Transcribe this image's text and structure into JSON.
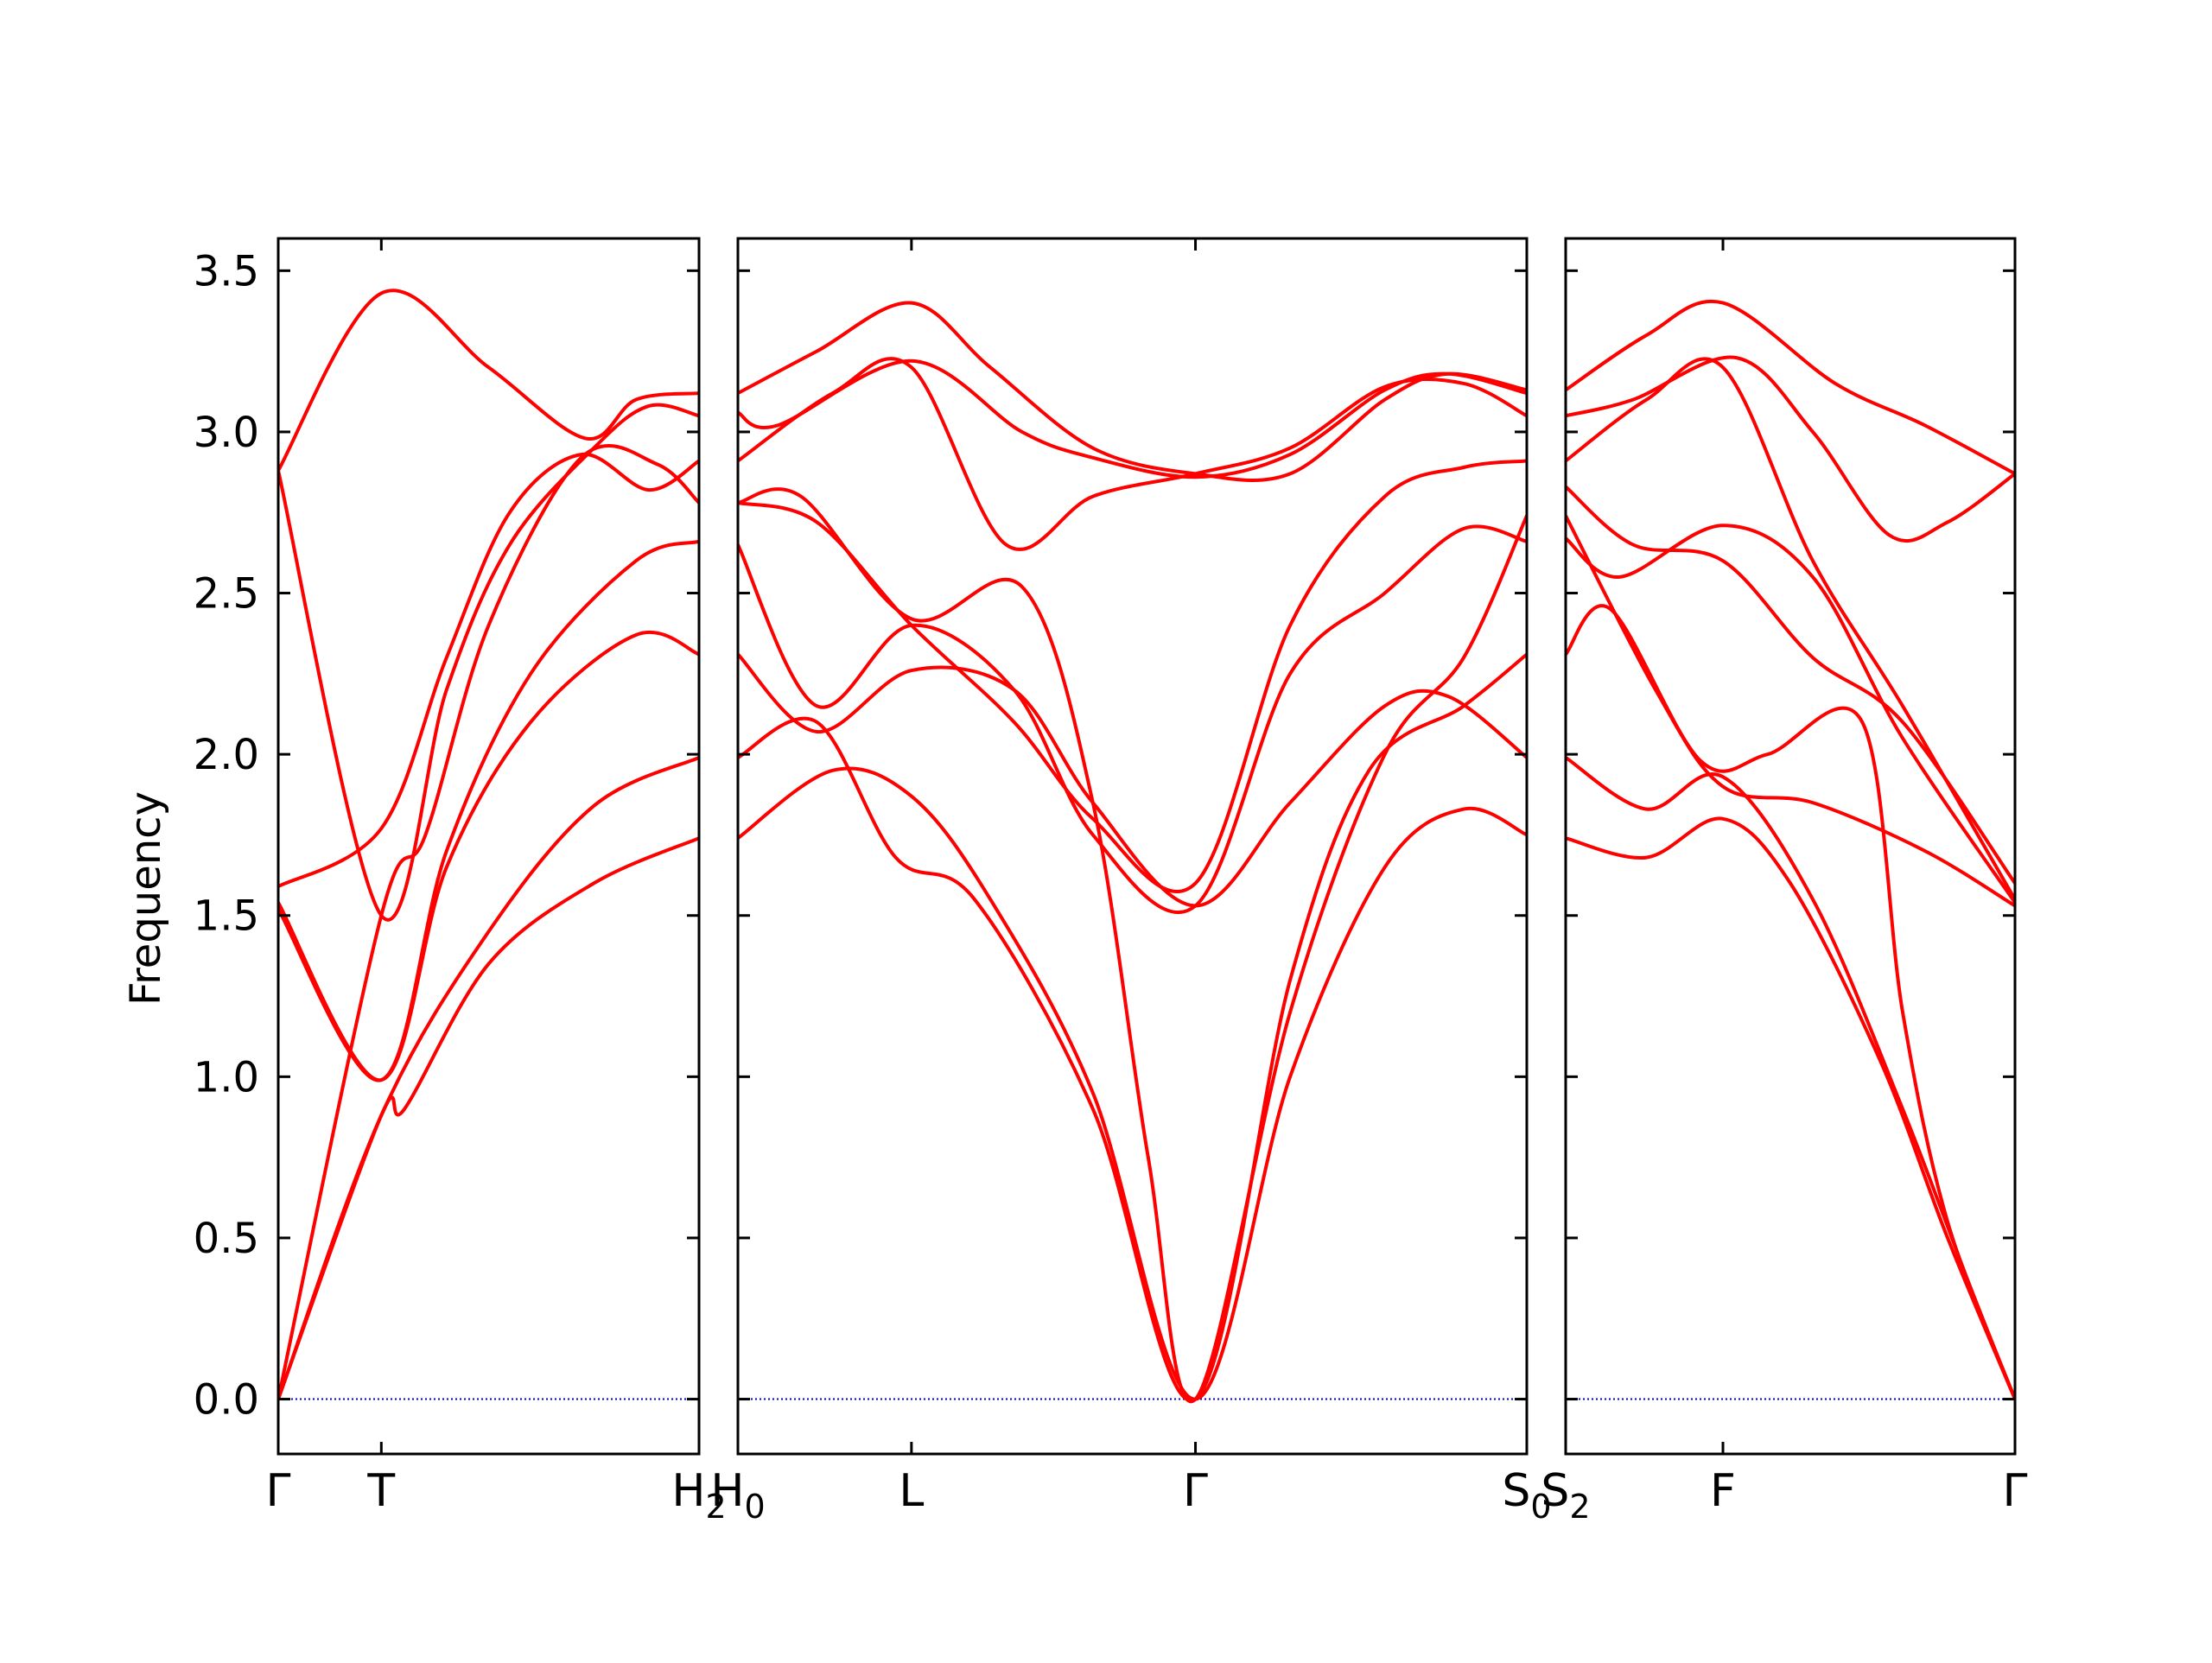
{
  "chart_data": {
    "type": "line",
    "ylabel": "Frequency",
    "ylim": [
      -0.17,
      3.6
    ],
    "yticks": [
      0.0,
      0.5,
      1.0,
      1.5,
      2.0,
      2.5,
      3.0,
      3.5
    ],
    "ytick_labels": [
      "0.0",
      "0.5",
      "1.0",
      "1.5",
      "2.0",
      "2.5",
      "3.0",
      "3.5"
    ],
    "line_color": "#ff0000",
    "zero_line_color": "#0000cc",
    "panels": [
      {
        "ticks": [
          {
            "x": 0.0,
            "label": "Γ",
            "sub": ""
          },
          {
            "x": 0.245,
            "label": "T",
            "sub": ""
          },
          {
            "x": 1.0,
            "label": "H",
            "sub": "2"
          }
        ],
        "bands": [
          [
            [
              0.0,
              0.0
            ],
            [
              0.245,
              0.88
            ],
            [
              0.5,
              1.45
            ],
            [
              0.75,
              1.84
            ],
            [
              1.0,
              1.99
            ]
          ],
          [
            [
              0.0,
              0.0
            ],
            [
              0.245,
              0.88
            ],
            [
              0.3,
              0.9
            ],
            [
              0.5,
              1.35
            ],
            [
              0.75,
              1.6
            ],
            [
              1.0,
              1.74
            ]
          ],
          [
            [
              0.0,
              0.0
            ],
            [
              0.245,
              1.5
            ],
            [
              0.35,
              1.75
            ],
            [
              0.5,
              2.4
            ],
            [
              0.72,
              2.92
            ],
            [
              0.9,
              2.9
            ],
            [
              1.0,
              2.78
            ]
          ],
          [
            [
              0.0,
              1.54
            ],
            [
              0.245,
              0.99
            ],
            [
              0.4,
              1.65
            ],
            [
              0.6,
              2.1
            ],
            [
              0.85,
              2.37
            ],
            [
              1.0,
              2.31
            ]
          ],
          [
            [
              0.0,
              1.52
            ],
            [
              0.245,
              0.99
            ],
            [
              0.4,
              1.7
            ],
            [
              0.6,
              2.25
            ],
            [
              0.85,
              2.6
            ],
            [
              1.0,
              2.66
            ]
          ],
          [
            [
              0.0,
              1.59
            ],
            [
              0.245,
              1.77
            ],
            [
              0.4,
              2.3
            ],
            [
              0.55,
              2.75
            ],
            [
              0.72,
              2.93
            ],
            [
              0.88,
              2.82
            ],
            [
              1.0,
              2.91
            ]
          ],
          [
            [
              0.0,
              2.88
            ],
            [
              0.245,
              1.5
            ],
            [
              0.4,
              2.2
            ],
            [
              0.55,
              2.65
            ],
            [
              0.75,
              2.95
            ],
            [
              0.88,
              3.08
            ],
            [
              1.0,
              3.05
            ]
          ],
          [
            [
              0.0,
              2.88
            ],
            [
              0.245,
              3.43
            ],
            [
              0.5,
              3.2
            ],
            [
              0.73,
              2.98
            ],
            [
              0.85,
              3.1
            ],
            [
              1.0,
              3.12
            ]
          ]
        ]
      },
      {
        "ticks": [
          {
            "x": 0.0,
            "label": "H",
            "sub": "0"
          },
          {
            "x": 0.22,
            "label": "L",
            "sub": ""
          },
          {
            "x": 0.58,
            "label": "Γ",
            "sub": ""
          },
          {
            "x": 1.0,
            "label": "S",
            "sub": "0"
          }
        ],
        "bands": [
          [
            [
              0.0,
              1.74
            ],
            [
              0.12,
              1.95
            ],
            [
              0.22,
              1.87
            ],
            [
              0.32,
              1.55
            ],
            [
              0.45,
              0.95
            ],
            [
              0.58,
              0.0
            ],
            [
              0.7,
              1.0
            ],
            [
              0.82,
              1.65
            ],
            [
              0.92,
              1.83
            ],
            [
              1.0,
              1.75
            ]
          ],
          [
            [
              0.0,
              1.99
            ],
            [
              0.1,
              2.1
            ],
            [
              0.2,
              1.68
            ],
            [
              0.3,
              1.55
            ],
            [
              0.45,
              0.9
            ],
            [
              0.58,
              0.0
            ],
            [
              0.7,
              1.3
            ],
            [
              0.8,
              1.95
            ],
            [
              0.92,
              2.15
            ],
            [
              1.0,
              2.31
            ]
          ],
          [
            [
              0.0,
              2.31
            ],
            [
              0.1,
              2.07
            ],
            [
              0.22,
              2.26
            ],
            [
              0.35,
              2.2
            ],
            [
              0.45,
              1.85
            ],
            [
              0.58,
              1.53
            ],
            [
              0.7,
              1.85
            ],
            [
              0.82,
              2.15
            ],
            [
              0.9,
              2.18
            ],
            [
              1.0,
              1.99
            ]
          ],
          [
            [
              0.0,
              2.65
            ],
            [
              0.1,
              2.15
            ],
            [
              0.22,
              2.4
            ],
            [
              0.35,
              2.2
            ],
            [
              0.45,
              1.75
            ],
            [
              0.58,
              1.53
            ],
            [
              0.7,
              2.25
            ],
            [
              0.82,
              2.5
            ],
            [
              0.92,
              2.7
            ],
            [
              1.0,
              2.66
            ]
          ],
          [
            [
              0.0,
              2.78
            ],
            [
              0.08,
              2.8
            ],
            [
              0.22,
              2.42
            ],
            [
              0.36,
              2.52
            ],
            [
              0.45,
              1.85
            ],
            [
              0.52,
              0.75
            ],
            [
              0.58,
              0.0
            ],
            [
              0.7,
              1.2
            ],
            [
              0.82,
              2.0
            ],
            [
              0.92,
              2.3
            ],
            [
              1.0,
              2.74
            ]
          ],
          [
            [
              0.0,
              2.78
            ],
            [
              0.1,
              2.72
            ],
            [
              0.22,
              2.4
            ],
            [
              0.35,
              2.1
            ],
            [
              0.45,
              1.8
            ],
            [
              0.58,
              1.6
            ],
            [
              0.7,
              2.4
            ],
            [
              0.82,
              2.8
            ],
            [
              0.92,
              2.89
            ],
            [
              1.0,
              2.91
            ]
          ],
          [
            [
              0.0,
              2.91
            ],
            [
              0.12,
              3.12
            ],
            [
              0.22,
              3.2
            ],
            [
              0.34,
              2.65
            ],
            [
              0.45,
              2.8
            ],
            [
              0.58,
              2.87
            ],
            [
              0.7,
              2.95
            ],
            [
              0.82,
              3.14
            ],
            [
              0.92,
              3.15
            ],
            [
              1.0,
              3.05
            ]
          ],
          [
            [
              0.0,
              3.06
            ],
            [
              0.05,
              3.02
            ],
            [
              0.22,
              3.22
            ],
            [
              0.36,
              3.0
            ],
            [
              0.45,
              2.92
            ],
            [
              0.58,
              2.86
            ],
            [
              0.7,
              2.93
            ],
            [
              0.82,
              3.13
            ],
            [
              0.9,
              3.18
            ],
            [
              1.0,
              3.12
            ]
          ],
          [
            [
              0.0,
              3.12
            ],
            [
              0.1,
              3.25
            ],
            [
              0.22,
              3.4
            ],
            [
              0.32,
              3.2
            ],
            [
              0.45,
              2.95
            ],
            [
              0.58,
              2.87
            ],
            [
              0.7,
              2.87
            ],
            [
              0.82,
              3.1
            ],
            [
              0.9,
              3.18
            ],
            [
              1.0,
              3.13
            ]
          ]
        ]
      },
      {
        "ticks": [
          {
            "x": 0.0,
            "label": "S",
            "sub": "2"
          },
          {
            "x": 0.35,
            "label": "F",
            "sub": ""
          },
          {
            "x": 1.0,
            "label": "Γ",
            "sub": ""
          }
        ],
        "bands": [
          [
            [
              0.0,
              1.74
            ],
            [
              0.18,
              1.68
            ],
            [
              0.35,
              1.8
            ],
            [
              0.5,
              1.6
            ],
            [
              0.7,
              1.05
            ],
            [
              0.85,
              0.5
            ],
            [
              1.0,
              0.0
            ]
          ],
          [
            [
              0.0,
              1.99
            ],
            [
              0.18,
              1.83
            ],
            [
              0.35,
              1.93
            ],
            [
              0.55,
              1.55
            ],
            [
              0.75,
              0.9
            ],
            [
              0.9,
              0.35
            ],
            [
              1.0,
              0.0
            ]
          ],
          [
            [
              0.0,
              2.31
            ],
            [
              0.1,
              2.45
            ],
            [
              0.3,
              1.98
            ],
            [
              0.45,
              2.0
            ],
            [
              0.66,
              2.1
            ],
            [
              0.75,
              1.2
            ],
            [
              0.85,
              0.55
            ],
            [
              1.0,
              0.0
            ]
          ],
          [
            [
              0.0,
              2.67
            ],
            [
              0.12,
              2.55
            ],
            [
              0.35,
              2.71
            ],
            [
              0.55,
              2.55
            ],
            [
              0.75,
              2.05
            ],
            [
              1.0,
              1.54
            ]
          ],
          [
            [
              0.0,
              2.74
            ],
            [
              0.2,
              2.2
            ],
            [
              0.35,
              1.9
            ],
            [
              0.55,
              1.85
            ],
            [
              0.8,
              1.7
            ],
            [
              1.0,
              1.53
            ]
          ],
          [
            [
              0.0,
              2.83
            ],
            [
              0.15,
              2.65
            ],
            [
              0.35,
              2.6
            ],
            [
              0.55,
              2.3
            ],
            [
              0.75,
              2.1
            ],
            [
              1.0,
              1.6
            ]
          ],
          [
            [
              0.0,
              2.91
            ],
            [
              0.18,
              3.1
            ],
            [
              0.35,
              3.2
            ],
            [
              0.55,
              2.6
            ],
            [
              0.75,
              2.15
            ],
            [
              1.0,
              1.55
            ]
          ],
          [
            [
              0.0,
              3.05
            ],
            [
              0.15,
              3.1
            ],
            [
              0.38,
              3.23
            ],
            [
              0.55,
              3.0
            ],
            [
              0.72,
              2.68
            ],
            [
              0.85,
              2.72
            ],
            [
              1.0,
              2.87
            ]
          ],
          [
            [
              0.0,
              3.13
            ],
            [
              0.18,
              3.3
            ],
            [
              0.35,
              3.4
            ],
            [
              0.6,
              3.15
            ],
            [
              0.8,
              3.02
            ],
            [
              1.0,
              2.87
            ]
          ]
        ]
      }
    ]
  }
}
